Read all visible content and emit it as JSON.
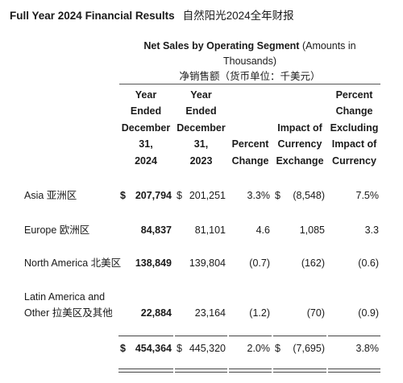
{
  "header": {
    "title_en": "Full Year 2024 Financial Results",
    "title_cn": "自然阳光2024全年财报"
  },
  "table": {
    "caption_bold": "Net Sales by Operating Segment",
    "caption_note": "(Amounts in Thousands)",
    "caption_cn": "净销售额（货币单位：千美元）",
    "columns": [
      [
        "Year",
        "Ended",
        "December",
        "31,",
        "2024"
      ],
      [
        "Year",
        "Ended",
        "December",
        "31,",
        "2023"
      ],
      [
        "Percent",
        "Change"
      ],
      [
        "Impact of",
        "Currency",
        "Exchange"
      ],
      [
        "Percent",
        "Change",
        "Excluding",
        "Impact of",
        "Currency"
      ]
    ],
    "rows": [
      {
        "label": [
          "Asia 亚洲区"
        ],
        "cells": [
          {
            "symbol": "$",
            "text": "207,794"
          },
          {
            "symbol": "$",
            "text": "201,251"
          },
          {
            "text": "3.3%"
          },
          {
            "symbol": "$",
            "text": "(8,548)"
          },
          {
            "text": "7.5%"
          }
        ]
      },
      {
        "label": [
          "Europe 欧洲区"
        ],
        "cells": [
          {
            "text": "84,837"
          },
          {
            "text": "81,101"
          },
          {
            "text": "4.6"
          },
          {
            "text": "1,085"
          },
          {
            "text": "3.3"
          }
        ]
      },
      {
        "label": [
          "North America 北美区"
        ],
        "cells": [
          {
            "text": "138,849"
          },
          {
            "text": "139,804"
          },
          {
            "text": "(0.7)"
          },
          {
            "text": "(162)"
          },
          {
            "text": "(0.6)"
          }
        ]
      },
      {
        "label": [
          "Latin America and",
          "Other 拉美区及其他"
        ],
        "cells": [
          {
            "text": "22,884"
          },
          {
            "text": "23,164"
          },
          {
            "text": "(1.2)"
          },
          {
            "text": "(70)"
          },
          {
            "text": "(0.9)"
          }
        ]
      },
      {
        "label": [],
        "cells": [
          {
            "symbol": "$",
            "text": "454,364"
          },
          {
            "symbol": "$",
            "text": "445,320"
          },
          {
            "text": "2.0%"
          },
          {
            "symbol": "$",
            "text": "(7,695)"
          },
          {
            "text": "3.8%"
          }
        ]
      }
    ]
  }
}
